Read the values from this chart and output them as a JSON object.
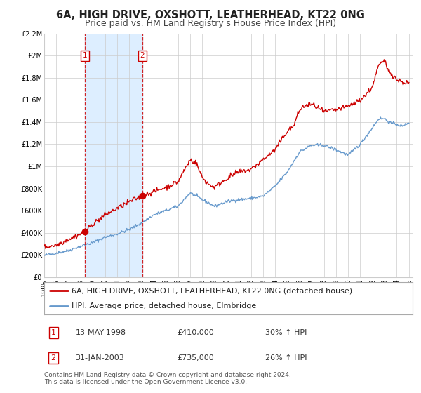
{
  "title": "6A, HIGH DRIVE, OXSHOTT, LEATHERHEAD, KT22 0NG",
  "subtitle": "Price paid vs. HM Land Registry's House Price Index (HPI)",
  "ylim": [
    0,
    2200000
  ],
  "xlim_start": 1995.0,
  "xlim_end": 2025.3,
  "ytick_labels": [
    "£0",
    "£200K",
    "£400K",
    "£600K",
    "£800K",
    "£1M",
    "£1.2M",
    "£1.4M",
    "£1.6M",
    "£1.8M",
    "£2M",
    "£2.2M"
  ],
  "ytick_values": [
    0,
    200000,
    400000,
    600000,
    800000,
    1000000,
    1200000,
    1400000,
    1600000,
    1800000,
    2000000,
    2200000
  ],
  "xtick_years": [
    1995,
    1996,
    1997,
    1998,
    1999,
    2000,
    2001,
    2002,
    2003,
    2004,
    2005,
    2006,
    2007,
    2008,
    2009,
    2010,
    2011,
    2012,
    2013,
    2014,
    2015,
    2016,
    2017,
    2018,
    2019,
    2020,
    2021,
    2022,
    2023,
    2024,
    2025
  ],
  "red_line_color": "#cc0000",
  "blue_line_color": "#6699cc",
  "shaded_region_color": "#ddeeff",
  "dashed_vline_color": "#cc0000",
  "sale1_x": 1998.37,
  "sale1_y": 410000,
  "sale1_label": "1",
  "sale1_date": "13-MAY-1998",
  "sale1_price": "£410,000",
  "sale1_hpi": "30% ↑ HPI",
  "sale2_x": 2003.08,
  "sale2_y": 735000,
  "sale2_label": "2",
  "sale2_date": "31-JAN-2003",
  "sale2_price": "£735,000",
  "sale2_hpi": "26% ↑ HPI",
  "legend_line1": "6A, HIGH DRIVE, OXSHOTT, LEATHERHEAD, KT22 0NG (detached house)",
  "legend_line2": "HPI: Average price, detached house, Elmbridge",
  "footer_line1": "Contains HM Land Registry data © Crown copyright and database right 2024.",
  "footer_line2": "This data is licensed under the Open Government Licence v3.0.",
  "background_color": "#ffffff",
  "grid_color": "#cccccc",
  "title_fontsize": 10.5,
  "subtitle_fontsize": 9,
  "tick_fontsize": 7,
  "legend_fontsize": 8,
  "footer_fontsize": 6.5
}
